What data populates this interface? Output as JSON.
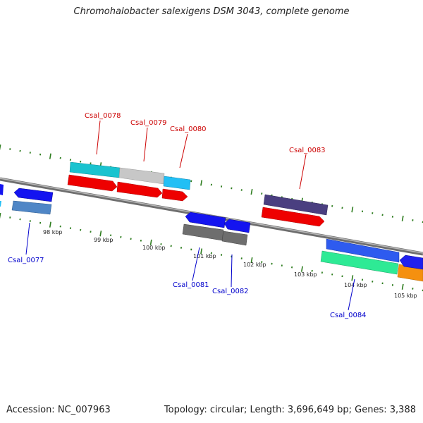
{
  "title": "Chromohalobacter salexigens DSM 3043, complete genome",
  "footer": {
    "accession": "Accession: NC_007963",
    "topology": "Topology: circular; Length: 3,696,649 bp; Genes: 3,388"
  },
  "colors": {
    "backbone": "#808080",
    "tick": "#2e7d1f",
    "forward_label": "#cc0000",
    "reverse_label": "#0000cc"
  },
  "scale_labels": [
    "98 kbp",
    "99 kbp",
    "100 kbp",
    "101 kbp",
    "102 kbp",
    "103 kbp",
    "104 kbp",
    "105 kbp"
  ],
  "genes": [
    {
      "id": "Csal_0077",
      "label": "Csal_0077",
      "strand": "reverse"
    },
    {
      "id": "Csal_0078",
      "label": "Csal_0078",
      "strand": "forward"
    },
    {
      "id": "Csal_0079",
      "label": "Csal_0079",
      "strand": "forward"
    },
    {
      "id": "Csal_0080",
      "label": "Csal_0080",
      "strand": "forward"
    },
    {
      "id": "Csal_0081",
      "label": "Csal_0081",
      "strand": "reverse"
    },
    {
      "id": "Csal_0082",
      "label": "Csal_0082",
      "strand": "reverse"
    },
    {
      "id": "Csal_0083",
      "label": "Csal_0083",
      "strand": "forward"
    },
    {
      "id": "Csal_0084",
      "label": "Csal_0084",
      "strand": "reverse"
    }
  ]
}
